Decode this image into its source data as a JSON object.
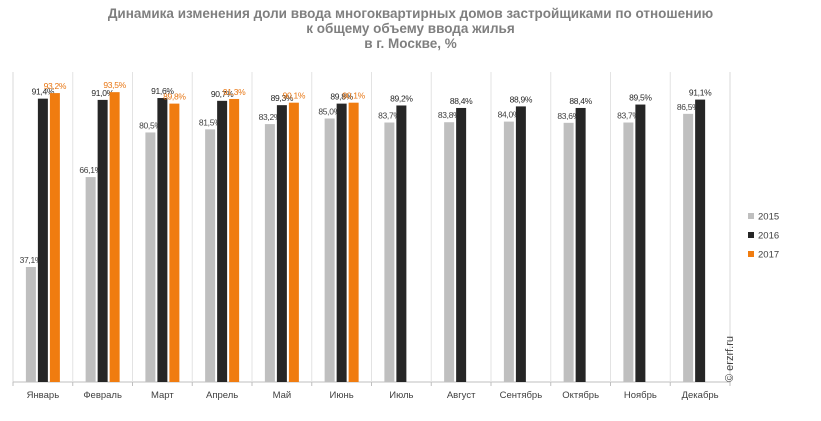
{
  "chart_data": {
    "type": "bar",
    "title_lines": [
      "Динамика изменения доли ввода многоквартирных домов застройщиками по отношению",
      "к общему объему ввода жилья",
      "в г. Москве, %"
    ],
    "categories": [
      "Январь",
      "Февраль",
      "Март",
      "Апрель",
      "Май",
      "Июнь",
      "Июль",
      "Август",
      "Сентябрь",
      "Октябрь",
      "Ноябрь",
      "Декабрь"
    ],
    "series": [
      {
        "name": "2015",
        "color": "#bfbfbf",
        "label_color": "#404040",
        "values": [
          37.1,
          66.1,
          80.5,
          81.5,
          83.2,
          85.0,
          83.7,
          83.8,
          84.0,
          83.6,
          83.7,
          86.5
        ],
        "labels": [
          "37,1%",
          "66,1%",
          "80,5%",
          "81,5%",
          "83,2%",
          "85,0%",
          "83,7%",
          "83,8%",
          "84,0%",
          "83,6%",
          "83,7%",
          "86,5%"
        ]
      },
      {
        "name": "2016",
        "color": "#262626",
        "label_color": "#262626",
        "values": [
          91.4,
          91.0,
          91.6,
          90.7,
          89.3,
          89.8,
          89.2,
          88.4,
          88.9,
          88.4,
          89.5,
          91.1
        ],
        "labels": [
          "91,4%",
          "91,0%",
          "91,6%",
          "90,7%",
          "89,3%",
          "89,8%",
          "89,2%",
          "88,4%",
          "88,9%",
          "88,4%",
          "89,5%",
          "91,1%"
        ]
      },
      {
        "name": "2017",
        "color": "#f07c10",
        "label_color": "#e87511",
        "values": [
          93.2,
          93.5,
          89.8,
          91.3,
          90.1,
          90.1,
          null,
          null,
          null,
          null,
          null,
          null
        ],
        "labels": [
          "93,2%",
          "93,5%",
          "89,8%",
          "91,3%",
          "90,1%",
          "90,1%",
          null,
          null,
          null,
          null,
          null,
          null
        ]
      }
    ],
    "ylim": [
      0,
      100
    ],
    "grid": "vertical separators between months",
    "legend_position": "right",
    "watermark": "© erzrf.ru"
  }
}
